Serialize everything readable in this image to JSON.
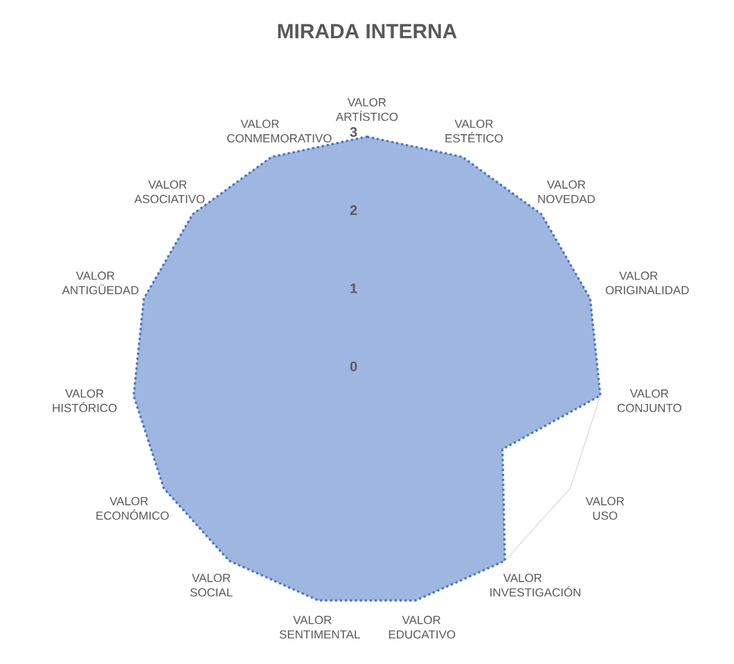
{
  "chart_data": {
    "type": "radar",
    "title": "MIRADA INTERNA",
    "categories": [
      "VALOR ARTÍSTICO",
      "VALOR ESTÉTICO",
      "VALOR NOVEDAD",
      "VALOR ORIGINALIDAD",
      "VALOR CONJUNTO",
      "VALOR USO",
      "VALOR INVESTIGACIÓN",
      "VALOR EDUCATIVO",
      "VALOR SENTIMENTAL",
      "VALOR SOCIAL",
      "VALOR ECONÓMICO",
      "VALOR HISTÓRICO",
      "VALOR ANTIGÜEDAD",
      "VALOR ASOCIATIVO",
      "VALOR CONMEMORATIVO"
    ],
    "series": [
      {
        "color": "#4472c4",
        "values": [
          3,
          3,
          3,
          3,
          3,
          2,
          3,
          3,
          3,
          3,
          3,
          3,
          3,
          3,
          3
        ]
      }
    ],
    "ylim": [
      0,
      3
    ],
    "yticks": [
      0,
      1,
      2,
      3
    ],
    "grid": true,
    "line_style": "dotted"
  }
}
